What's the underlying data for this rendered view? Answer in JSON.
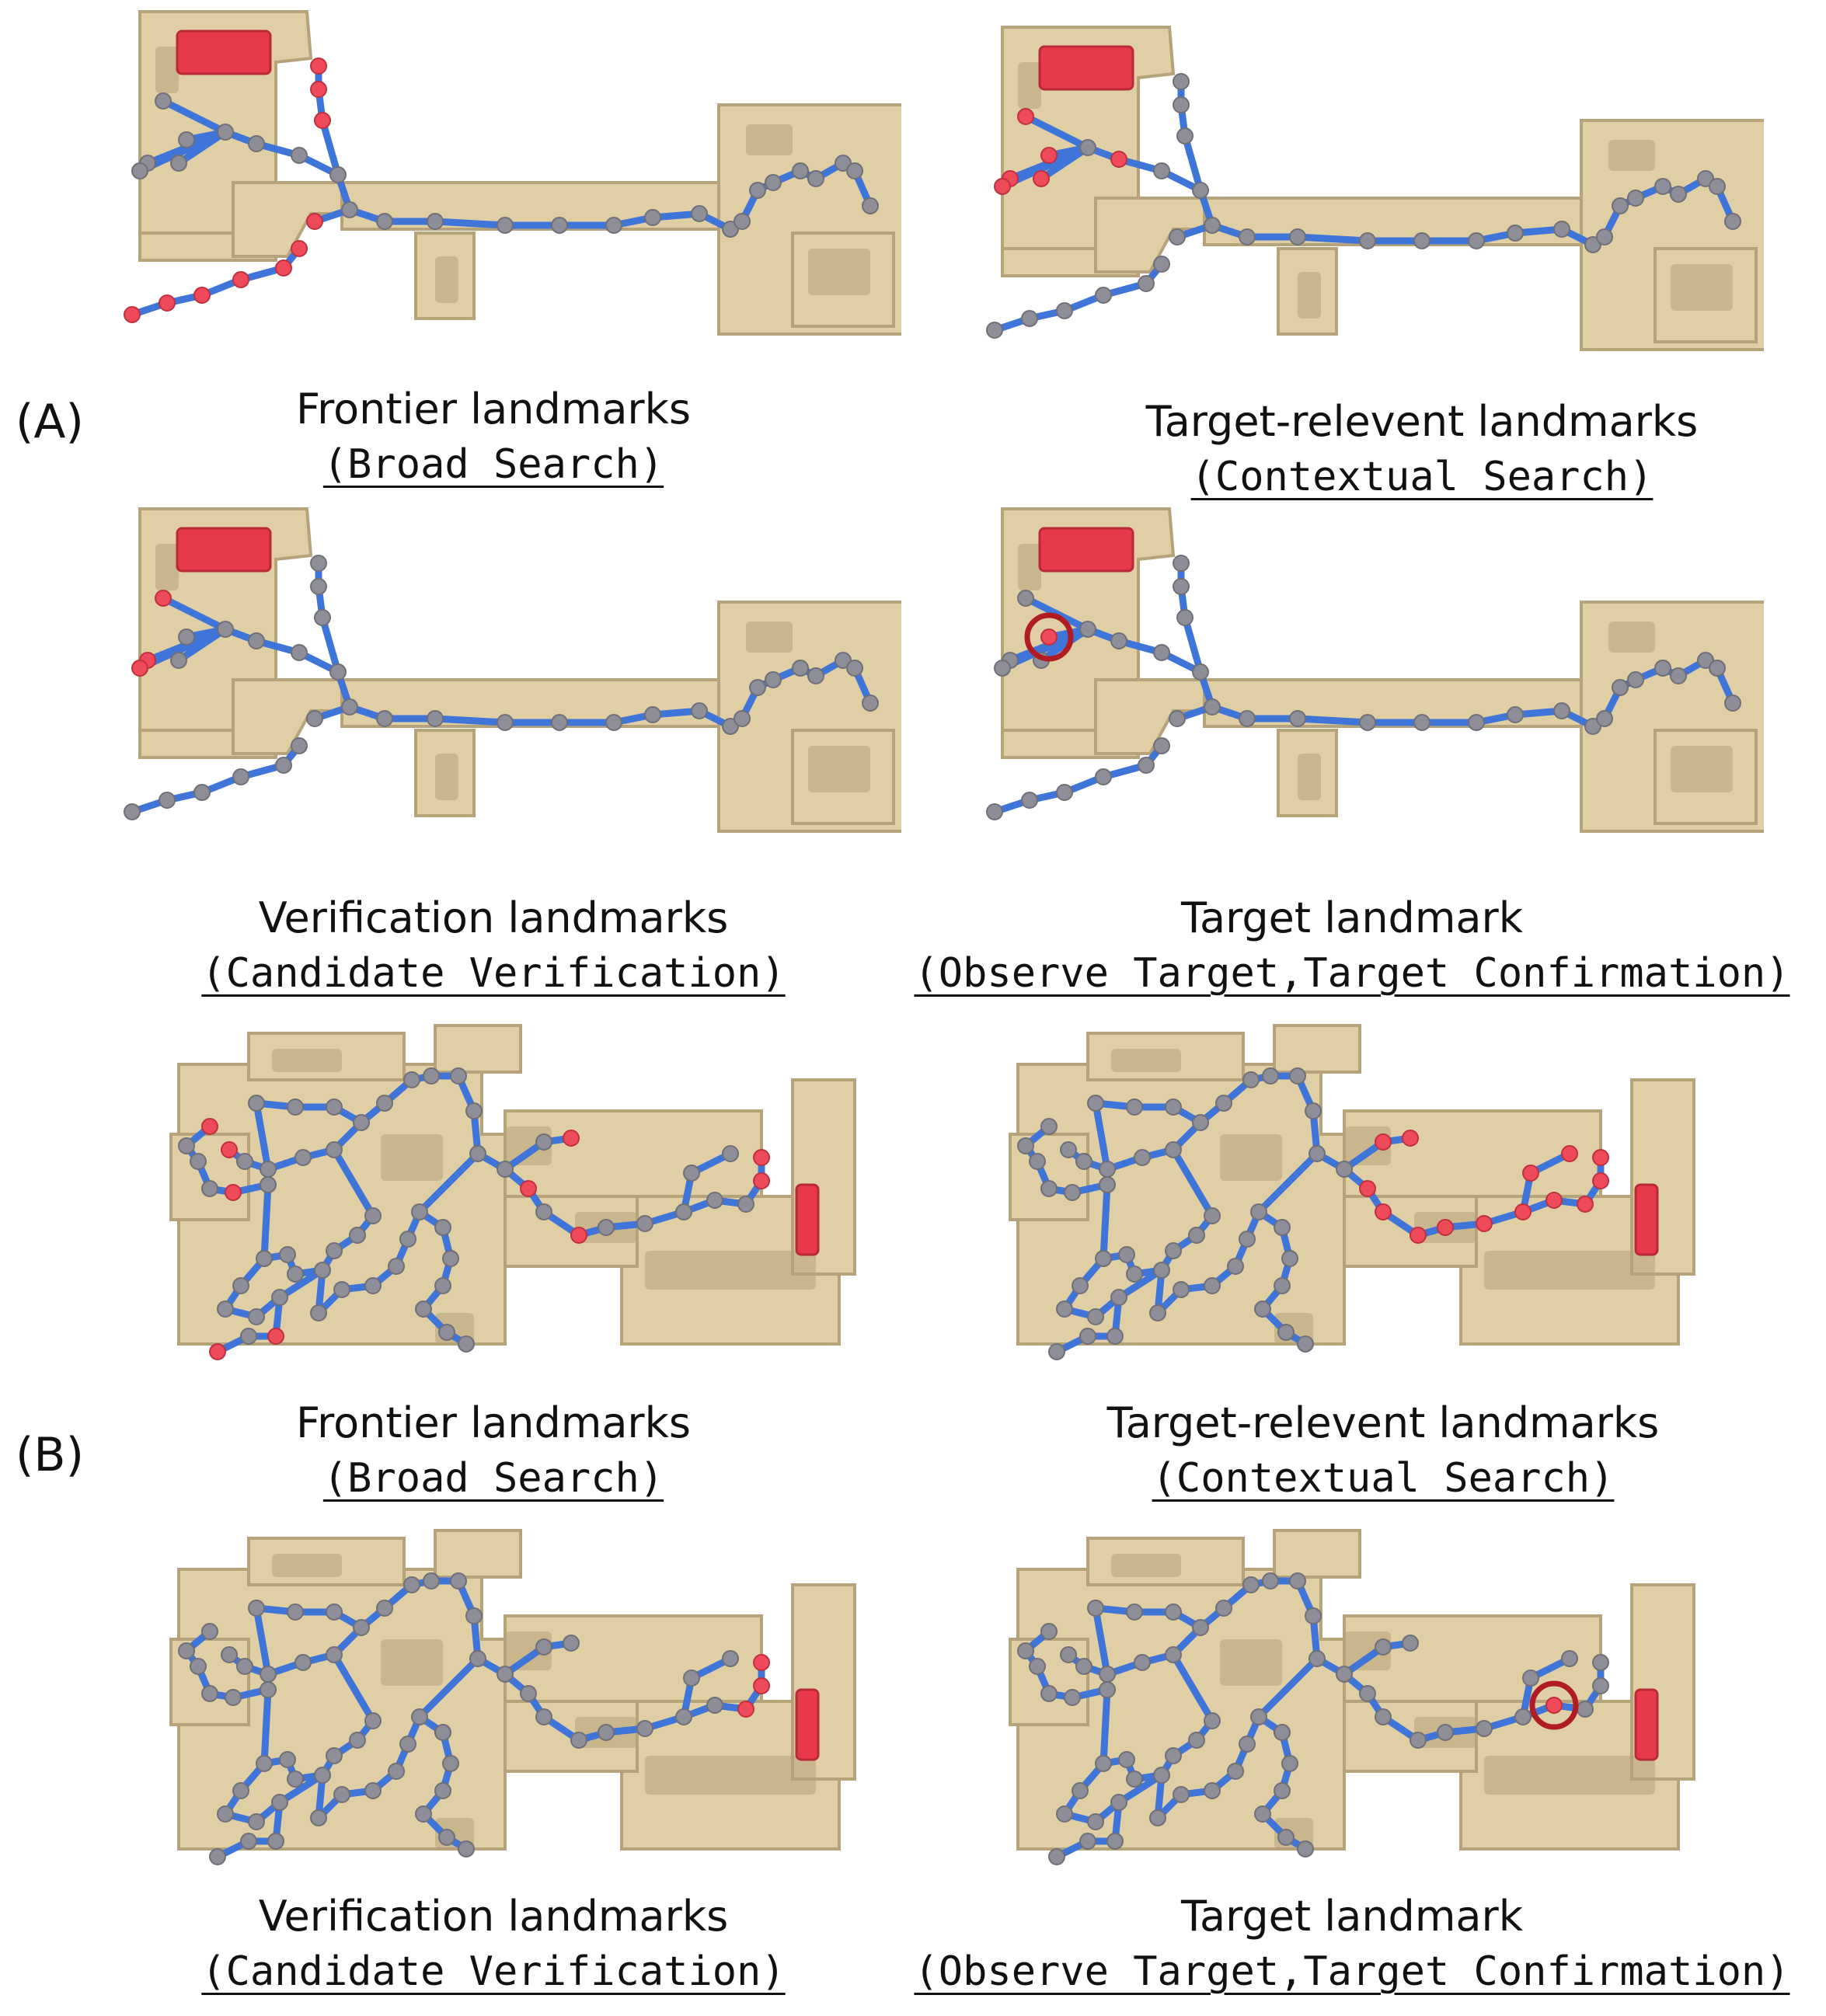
{
  "sections": [
    {
      "label": "(A)",
      "panels": [
        {
          "title": "Frontier landmarks",
          "subtitle": "(Broad Search)"
        },
        {
          "title": "Target-relevent landmarks",
          "subtitle": "(Contextual Search)"
        },
        {
          "title": "Verification landmarks",
          "subtitle": "(Candidate Verification)"
        },
        {
          "title": "Target  landmark",
          "subtitle": "(Observe Target,Target Confirmation)"
        }
      ]
    },
    {
      "label": "(B)",
      "panels": [
        {
          "title": "Frontier landmarks",
          "subtitle": "(Broad Search)"
        },
        {
          "title": "Target-relevent landmarks",
          "subtitle": "(Contextual Search)"
        },
        {
          "title": "Verification landmarks",
          "subtitle": "(Candidate Verification)"
        },
        {
          "title": "Target  landmark",
          "subtitle": "(Observe Target,Target Confirmation)"
        }
      ]
    }
  ],
  "colors": {
    "floor": "#e0cfa4",
    "floor_dark": "#b7a37a",
    "edge": "#3f74d8",
    "node_gray": "#8e8e98",
    "node_red": "#ee4a5a",
    "target_object": "#e8394b",
    "target_ring": "#b01c22"
  }
}
